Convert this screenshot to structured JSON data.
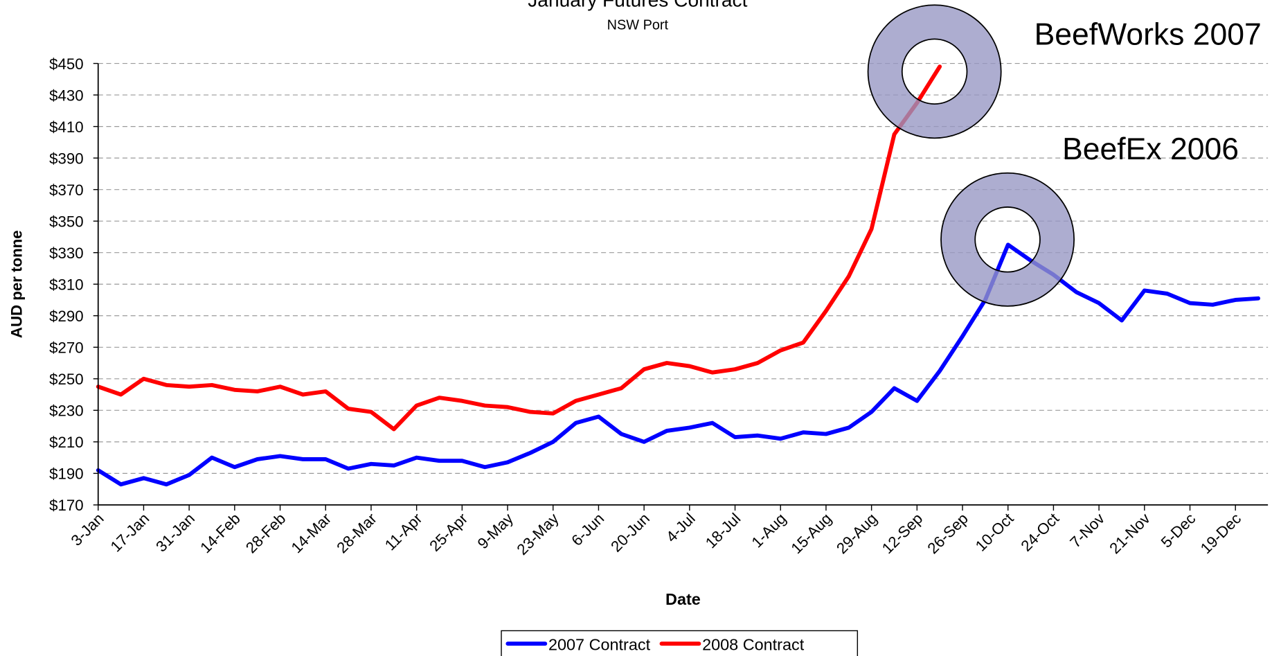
{
  "chart_data": {
    "type": "line",
    "title": "January Futures Contract",
    "subtitle": "NSW Port",
    "x_label": "Date",
    "y_label": "AUD per tonne",
    "x": [
      "3-Jan",
      "10-Jan",
      "17-Jan",
      "24-Jan",
      "31-Jan",
      "7-Feb",
      "14-Feb",
      "21-Feb",
      "28-Feb",
      "7-Mar",
      "14-Mar",
      "21-Mar",
      "28-Mar",
      "4-Apr",
      "11-Apr",
      "18-Apr",
      "25-Apr",
      "2-May",
      "9-May",
      "16-May",
      "23-May",
      "30-May",
      "6-Jun",
      "13-Jun",
      "20-Jun",
      "27-Jun",
      "4-Jul",
      "11-Jul",
      "18-Jul",
      "25-Jul",
      "1-Aug",
      "8-Aug",
      "15-Aug",
      "22-Aug",
      "29-Aug",
      "5-Sep",
      "12-Sep",
      "19-Sep",
      "26-Sep",
      "3-Oct",
      "10-Oct",
      "17-Oct",
      "24-Oct",
      "31-Oct",
      "7-Nov",
      "14-Nov",
      "21-Nov",
      "28-Nov",
      "5-Dec",
      "12-Dec",
      "19-Dec",
      "26-Dec"
    ],
    "series": [
      {
        "name": "2007 Contract",
        "color": "#0000ff",
        "values": [
          192,
          183,
          187,
          183,
          189,
          200,
          194,
          199,
          201,
          199,
          199,
          193,
          196,
          195,
          200,
          198,
          198,
          194,
          197,
          203,
          210,
          222,
          226,
          215,
          210,
          217,
          219,
          222,
          213,
          214,
          212,
          216,
          215,
          219,
          229,
          244,
          236,
          255,
          277,
          300,
          335,
          325,
          316,
          305,
          298,
          287,
          306,
          304,
          298,
          297,
          300,
          301
        ]
      },
      {
        "name": "2008 Contract",
        "color": "#ff0000",
        "values": [
          245,
          240,
          250,
          246,
          245,
          246,
          243,
          242,
          245,
          240,
          242,
          231,
          229,
          218,
          233,
          238,
          236,
          233,
          232,
          229,
          228,
          236,
          240,
          244,
          256,
          260,
          258,
          254,
          256,
          260,
          268,
          273,
          293,
          315,
          345,
          405,
          425,
          448,
          null,
          null,
          null,
          null,
          null,
          null,
          null,
          null,
          null,
          null,
          null,
          null,
          null,
          null
        ]
      }
    ],
    "xlim": [
      "3-Jan",
      "29-Dec"
    ],
    "xticks": [
      "3-Jan",
      "17-Jan",
      "31-Jan",
      "14-Feb",
      "28-Feb",
      "14-Mar",
      "28-Mar",
      "11-Apr",
      "25-Apr",
      "9-May",
      "23-May",
      "6-Jun",
      "20-Jun",
      "4-Jul",
      "18-Jul",
      "1-Aug",
      "15-Aug",
      "29-Aug",
      "12-Sep",
      "26-Sep",
      "10-Oct",
      "24-Oct",
      "7-Nov",
      "21-Nov",
      "5-Dec",
      "19-Dec"
    ],
    "ylim": [
      170,
      450
    ],
    "yticks": [
      {
        "value": 170,
        "label": "$170"
      },
      {
        "value": 190,
        "label": "$190"
      },
      {
        "value": 210,
        "label": "$210"
      },
      {
        "value": 230,
        "label": "$230"
      },
      {
        "value": 250,
        "label": "$250"
      },
      {
        "value": 270,
        "label": "$270"
      },
      {
        "value": 290,
        "label": "$290"
      },
      {
        "value": 310,
        "label": "$310"
      },
      {
        "value": 330,
        "label": "$330"
      },
      {
        "value": 350,
        "label": "$350"
      },
      {
        "value": 370,
        "label": "$370"
      },
      {
        "value": 390,
        "label": "$390"
      },
      {
        "value": 410,
        "label": "$410"
      },
      {
        "value": 430,
        "label": "$430"
      },
      {
        "value": 450,
        "label": "$450"
      }
    ],
    "grid": true,
    "legend": "bottom",
    "annotations": [
      {
        "text": "BeefWorks 2007"
      },
      {
        "text": "BeefEx 2006"
      }
    ]
  }
}
